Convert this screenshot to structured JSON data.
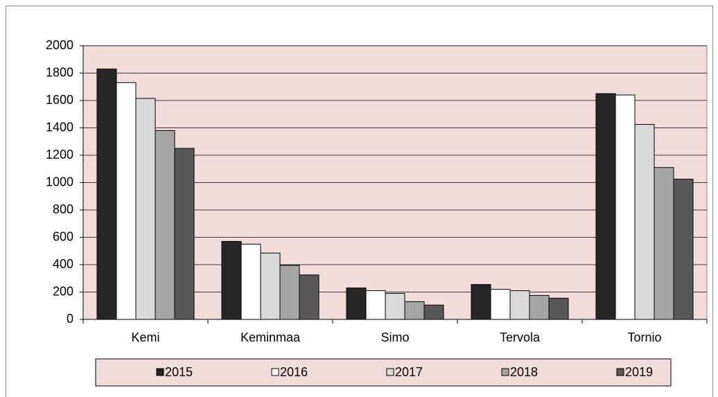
{
  "chart_data": {
    "type": "bar",
    "categories": [
      "Kemi",
      "Keminmaa",
      "Simo",
      "Tervola",
      "Tornio"
    ],
    "series": [
      {
        "name": "2015",
        "color": "#262626",
        "values": [
          1830,
          570,
          230,
          255,
          1650
        ]
      },
      {
        "name": "2016",
        "color": "#ffffff",
        "values": [
          1730,
          550,
          210,
          220,
          1640
        ]
      },
      {
        "name": "2017",
        "color": "#d9d9d9",
        "values": [
          1615,
          485,
          190,
          210,
          1425
        ]
      },
      {
        "name": "2018",
        "color": "#a6a6a6",
        "values": [
          1380,
          395,
          130,
          175,
          1110
        ]
      },
      {
        "name": "2019",
        "color": "#595959",
        "values": [
          1250,
          325,
          105,
          155,
          1025
        ]
      }
    ],
    "ylim": [
      0,
      2000
    ],
    "yticks": [
      0,
      200,
      400,
      600,
      800,
      1000,
      1200,
      1400,
      1600,
      1800,
      2000
    ],
    "grid": true,
    "legend": "bottom",
    "plot_background": "#f2dcdb"
  }
}
